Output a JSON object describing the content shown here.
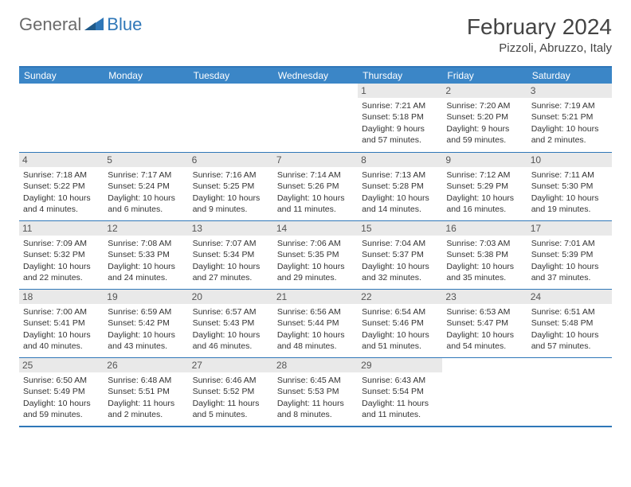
{
  "logo": {
    "general": "General",
    "blue": "Blue"
  },
  "title": "February 2024",
  "location": "Pizzoli, Abruzzo, Italy",
  "colors": {
    "header_bg": "#3b86c7",
    "border": "#2f77b8",
    "daynum_bg": "#e9e9e9",
    "text": "#333333"
  },
  "weekdays": [
    "Sunday",
    "Monday",
    "Tuesday",
    "Wednesday",
    "Thursday",
    "Friday",
    "Saturday"
  ],
  "weeks": [
    [
      null,
      null,
      null,
      null,
      {
        "n": "1",
        "sr": "Sunrise: 7:21 AM",
        "ss": "Sunset: 5:18 PM",
        "d1": "Daylight: 9 hours",
        "d2": "and 57 minutes."
      },
      {
        "n": "2",
        "sr": "Sunrise: 7:20 AM",
        "ss": "Sunset: 5:20 PM",
        "d1": "Daylight: 9 hours",
        "d2": "and 59 minutes."
      },
      {
        "n": "3",
        "sr": "Sunrise: 7:19 AM",
        "ss": "Sunset: 5:21 PM",
        "d1": "Daylight: 10 hours",
        "d2": "and 2 minutes."
      }
    ],
    [
      {
        "n": "4",
        "sr": "Sunrise: 7:18 AM",
        "ss": "Sunset: 5:22 PM",
        "d1": "Daylight: 10 hours",
        "d2": "and 4 minutes."
      },
      {
        "n": "5",
        "sr": "Sunrise: 7:17 AM",
        "ss": "Sunset: 5:24 PM",
        "d1": "Daylight: 10 hours",
        "d2": "and 6 minutes."
      },
      {
        "n": "6",
        "sr": "Sunrise: 7:16 AM",
        "ss": "Sunset: 5:25 PM",
        "d1": "Daylight: 10 hours",
        "d2": "and 9 minutes."
      },
      {
        "n": "7",
        "sr": "Sunrise: 7:14 AM",
        "ss": "Sunset: 5:26 PM",
        "d1": "Daylight: 10 hours",
        "d2": "and 11 minutes."
      },
      {
        "n": "8",
        "sr": "Sunrise: 7:13 AM",
        "ss": "Sunset: 5:28 PM",
        "d1": "Daylight: 10 hours",
        "d2": "and 14 minutes."
      },
      {
        "n": "9",
        "sr": "Sunrise: 7:12 AM",
        "ss": "Sunset: 5:29 PM",
        "d1": "Daylight: 10 hours",
        "d2": "and 16 minutes."
      },
      {
        "n": "10",
        "sr": "Sunrise: 7:11 AM",
        "ss": "Sunset: 5:30 PM",
        "d1": "Daylight: 10 hours",
        "d2": "and 19 minutes."
      }
    ],
    [
      {
        "n": "11",
        "sr": "Sunrise: 7:09 AM",
        "ss": "Sunset: 5:32 PM",
        "d1": "Daylight: 10 hours",
        "d2": "and 22 minutes."
      },
      {
        "n": "12",
        "sr": "Sunrise: 7:08 AM",
        "ss": "Sunset: 5:33 PM",
        "d1": "Daylight: 10 hours",
        "d2": "and 24 minutes."
      },
      {
        "n": "13",
        "sr": "Sunrise: 7:07 AM",
        "ss": "Sunset: 5:34 PM",
        "d1": "Daylight: 10 hours",
        "d2": "and 27 minutes."
      },
      {
        "n": "14",
        "sr": "Sunrise: 7:06 AM",
        "ss": "Sunset: 5:35 PM",
        "d1": "Daylight: 10 hours",
        "d2": "and 29 minutes."
      },
      {
        "n": "15",
        "sr": "Sunrise: 7:04 AM",
        "ss": "Sunset: 5:37 PM",
        "d1": "Daylight: 10 hours",
        "d2": "and 32 minutes."
      },
      {
        "n": "16",
        "sr": "Sunrise: 7:03 AM",
        "ss": "Sunset: 5:38 PM",
        "d1": "Daylight: 10 hours",
        "d2": "and 35 minutes."
      },
      {
        "n": "17",
        "sr": "Sunrise: 7:01 AM",
        "ss": "Sunset: 5:39 PM",
        "d1": "Daylight: 10 hours",
        "d2": "and 37 minutes."
      }
    ],
    [
      {
        "n": "18",
        "sr": "Sunrise: 7:00 AM",
        "ss": "Sunset: 5:41 PM",
        "d1": "Daylight: 10 hours",
        "d2": "and 40 minutes."
      },
      {
        "n": "19",
        "sr": "Sunrise: 6:59 AM",
        "ss": "Sunset: 5:42 PM",
        "d1": "Daylight: 10 hours",
        "d2": "and 43 minutes."
      },
      {
        "n": "20",
        "sr": "Sunrise: 6:57 AM",
        "ss": "Sunset: 5:43 PM",
        "d1": "Daylight: 10 hours",
        "d2": "and 46 minutes."
      },
      {
        "n": "21",
        "sr": "Sunrise: 6:56 AM",
        "ss": "Sunset: 5:44 PM",
        "d1": "Daylight: 10 hours",
        "d2": "and 48 minutes."
      },
      {
        "n": "22",
        "sr": "Sunrise: 6:54 AM",
        "ss": "Sunset: 5:46 PM",
        "d1": "Daylight: 10 hours",
        "d2": "and 51 minutes."
      },
      {
        "n": "23",
        "sr": "Sunrise: 6:53 AM",
        "ss": "Sunset: 5:47 PM",
        "d1": "Daylight: 10 hours",
        "d2": "and 54 minutes."
      },
      {
        "n": "24",
        "sr": "Sunrise: 6:51 AM",
        "ss": "Sunset: 5:48 PM",
        "d1": "Daylight: 10 hours",
        "d2": "and 57 minutes."
      }
    ],
    [
      {
        "n": "25",
        "sr": "Sunrise: 6:50 AM",
        "ss": "Sunset: 5:49 PM",
        "d1": "Daylight: 10 hours",
        "d2": "and 59 minutes."
      },
      {
        "n": "26",
        "sr": "Sunrise: 6:48 AM",
        "ss": "Sunset: 5:51 PM",
        "d1": "Daylight: 11 hours",
        "d2": "and 2 minutes."
      },
      {
        "n": "27",
        "sr": "Sunrise: 6:46 AM",
        "ss": "Sunset: 5:52 PM",
        "d1": "Daylight: 11 hours",
        "d2": "and 5 minutes."
      },
      {
        "n": "28",
        "sr": "Sunrise: 6:45 AM",
        "ss": "Sunset: 5:53 PM",
        "d1": "Daylight: 11 hours",
        "d2": "and 8 minutes."
      },
      {
        "n": "29",
        "sr": "Sunrise: 6:43 AM",
        "ss": "Sunset: 5:54 PM",
        "d1": "Daylight: 11 hours",
        "d2": "and 11 minutes."
      },
      null,
      null
    ]
  ]
}
